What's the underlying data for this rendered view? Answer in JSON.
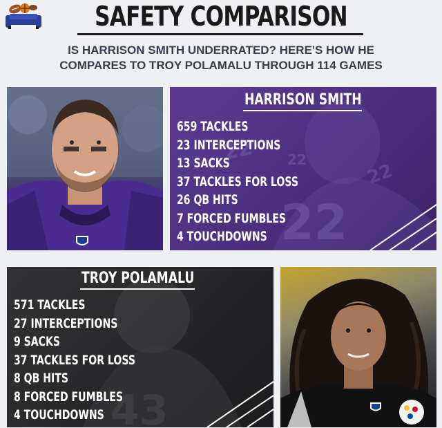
{
  "title": "SAFETY COMPARISON",
  "subtitle_lines": [
    "IS HARRISON SMITH UNDERRATED? HERE'S HOW HE",
    "COMPARES TO TROY POLAMALU THROUGH 114 GAMES"
  ],
  "logo_icon": "couch-sports-balls-icon",
  "smith": {
    "name": "HARRISON SMITH",
    "jersey_numbers": [
      "22",
      "22",
      "22",
      "22"
    ],
    "stats": [
      "659 TACKLES",
      "23 INTERCEPTIONS",
      "13 SACKS",
      "37 TACKLES FOR LOSS",
      "26 QB HITS",
      "7 FORCED FUMBLES",
      "4 TOUCHDOWNS"
    ],
    "panel_color": "#4b2f7e"
  },
  "troy": {
    "name": "TROY POLAMALU",
    "jersey_numbers": [
      "43"
    ],
    "stats": [
      "571 TACKLES",
      "27 INTERCEPTIONS",
      "9 SACKS",
      "37 TACKLES FOR LOSS",
      "8 QB HITS",
      "8 FORCED FUMBLES",
      "4 TOUCHDOWNS"
    ],
    "panel_color": "#252426"
  }
}
